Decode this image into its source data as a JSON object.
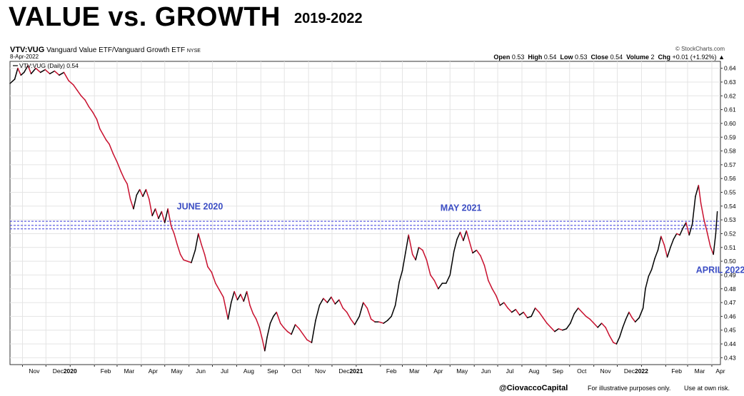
{
  "header": {
    "title": "VALUE vs. GROWTH",
    "years": "2019-2022"
  },
  "chart_info": {
    "symbol": "VTV:VUG",
    "name": "Vanguard Value ETF/Vanguard Growth ETF",
    "exchange": "NYSE",
    "date": "8-Apr-2022",
    "source": "© StockCharts.com",
    "legend": "VTV:VUG (Daily) 0.54",
    "ohlc": [
      {
        "label": "Open",
        "value": "0.53"
      },
      {
        "label": "High",
        "value": "0.54"
      },
      {
        "label": "Low",
        "value": "0.53"
      },
      {
        "label": "Close",
        "value": "0.54"
      },
      {
        "label": "Volume",
        "value": "2"
      },
      {
        "label": "Chg",
        "value": "+0.01 (+1.92%)"
      }
    ]
  },
  "chart_data": {
    "type": "line",
    "x_range": [
      "2019-10-16",
      "2022-04-12"
    ],
    "ylim": [
      0.425,
      0.645
    ],
    "y_ticks": [
      0.43,
      0.44,
      0.45,
      0.46,
      0.47,
      0.48,
      0.49,
      0.5,
      0.51,
      0.52,
      0.53,
      0.54,
      0.55,
      0.56,
      0.57,
      0.58,
      0.59,
      0.6,
      0.61,
      0.62,
      0.63,
      0.64
    ],
    "x_ticks": [
      {
        "label": "Nov",
        "date": "2019-11-01",
        "bold": false
      },
      {
        "label": "Dec",
        "date": "2019-12-01",
        "bold": false
      },
      {
        "label": "2020",
        "date": "2020-01-01",
        "bold": true
      },
      {
        "label": "Feb",
        "date": "2020-02-01",
        "bold": false
      },
      {
        "label": "Mar",
        "date": "2020-03-01",
        "bold": false
      },
      {
        "label": "Apr",
        "date": "2020-04-01",
        "bold": false
      },
      {
        "label": "May",
        "date": "2020-05-01",
        "bold": false
      },
      {
        "label": "Jun",
        "date": "2020-06-01",
        "bold": false
      },
      {
        "label": "Jul",
        "date": "2020-07-01",
        "bold": false
      },
      {
        "label": "Aug",
        "date": "2020-08-01",
        "bold": false
      },
      {
        "label": "Sep",
        "date": "2020-09-01",
        "bold": false
      },
      {
        "label": "Oct",
        "date": "2020-10-01",
        "bold": false
      },
      {
        "label": "Nov",
        "date": "2020-11-01",
        "bold": false
      },
      {
        "label": "Dec",
        "date": "2020-12-01",
        "bold": false
      },
      {
        "label": "2021",
        "date": "2021-01-01",
        "bold": true
      },
      {
        "label": "Feb",
        "date": "2021-02-01",
        "bold": false
      },
      {
        "label": "Mar",
        "date": "2021-03-01",
        "bold": false
      },
      {
        "label": "Apr",
        "date": "2021-04-01",
        "bold": false
      },
      {
        "label": "May",
        "date": "2021-05-01",
        "bold": false
      },
      {
        "label": "Jun",
        "date": "2021-06-01",
        "bold": false
      },
      {
        "label": "Jul",
        "date": "2021-07-01",
        "bold": false
      },
      {
        "label": "Aug",
        "date": "2021-08-01",
        "bold": false
      },
      {
        "label": "Sep",
        "date": "2021-09-01",
        "bold": false
      },
      {
        "label": "Oct",
        "date": "2021-10-01",
        "bold": false
      },
      {
        "label": "Nov",
        "date": "2021-11-01",
        "bold": false
      },
      {
        "label": "Dec",
        "date": "2021-12-01",
        "bold": false
      },
      {
        "label": "2022",
        "date": "2022-01-01",
        "bold": true
      },
      {
        "label": "Feb",
        "date": "2022-02-01",
        "bold": false
      },
      {
        "label": "Mar",
        "date": "2022-03-01",
        "bold": false
      },
      {
        "label": "Apr",
        "date": "2022-04-01",
        "bold": false
      }
    ],
    "series": [
      {
        "up_color": "#000000",
        "down_color": "#c8102e",
        "points": [
          [
            "2019-10-16",
            0.629
          ],
          [
            "2019-10-22",
            0.632
          ],
          [
            "2019-10-26",
            0.64
          ],
          [
            "2019-10-30",
            0.635
          ],
          [
            "2019-11-03",
            0.637
          ],
          [
            "2019-11-08",
            0.642
          ],
          [
            "2019-11-12",
            0.636
          ],
          [
            "2019-11-18",
            0.64
          ],
          [
            "2019-11-24",
            0.637
          ],
          [
            "2019-11-30",
            0.639
          ],
          [
            "2019-12-06",
            0.636
          ],
          [
            "2019-12-12",
            0.638
          ],
          [
            "2019-12-18",
            0.635
          ],
          [
            "2019-12-24",
            0.637
          ],
          [
            "2019-12-30",
            0.631
          ],
          [
            "2020-01-05",
            0.628
          ],
          [
            "2020-01-10",
            0.624
          ],
          [
            "2020-01-15",
            0.62
          ],
          [
            "2020-01-20",
            0.617
          ],
          [
            "2020-01-25",
            0.612
          ],
          [
            "2020-01-30",
            0.608
          ],
          [
            "2020-02-04",
            0.603
          ],
          [
            "2020-02-08",
            0.596
          ],
          [
            "2020-02-12",
            0.592
          ],
          [
            "2020-02-16",
            0.588
          ],
          [
            "2020-02-20",
            0.585
          ],
          [
            "2020-02-25",
            0.578
          ],
          [
            "2020-03-01",
            0.572
          ],
          [
            "2020-03-06",
            0.565
          ],
          [
            "2020-03-10",
            0.56
          ],
          [
            "2020-03-14",
            0.556
          ],
          [
            "2020-03-18",
            0.545
          ],
          [
            "2020-03-22",
            0.538
          ],
          [
            "2020-03-26",
            0.548
          ],
          [
            "2020-03-30",
            0.552
          ],
          [
            "2020-04-03",
            0.547
          ],
          [
            "2020-04-07",
            0.552
          ],
          [
            "2020-04-11",
            0.545
          ],
          [
            "2020-04-15",
            0.533
          ],
          [
            "2020-04-19",
            0.538
          ],
          [
            "2020-04-23",
            0.531
          ],
          [
            "2020-04-27",
            0.536
          ],
          [
            "2020-05-01",
            0.528
          ],
          [
            "2020-05-05",
            0.538
          ],
          [
            "2020-05-09",
            0.526
          ],
          [
            "2020-05-13",
            0.52
          ],
          [
            "2020-05-17",
            0.512
          ],
          [
            "2020-05-21",
            0.505
          ],
          [
            "2020-05-25",
            0.501
          ],
          [
            "2020-05-30",
            0.5
          ],
          [
            "2020-06-04",
            0.499
          ],
          [
            "2020-06-09",
            0.508
          ],
          [
            "2020-06-13",
            0.52
          ],
          [
            "2020-06-17",
            0.512
          ],
          [
            "2020-06-21",
            0.505
          ],
          [
            "2020-06-25",
            0.496
          ],
          [
            "2020-06-30",
            0.492
          ],
          [
            "2020-07-05",
            0.484
          ],
          [
            "2020-07-10",
            0.479
          ],
          [
            "2020-07-15",
            0.474
          ],
          [
            "2020-07-18",
            0.466
          ],
          [
            "2020-07-21",
            0.458
          ],
          [
            "2020-07-25",
            0.47
          ],
          [
            "2020-07-29",
            0.478
          ],
          [
            "2020-08-02",
            0.472
          ],
          [
            "2020-08-06",
            0.476
          ],
          [
            "2020-08-10",
            0.471
          ],
          [
            "2020-08-14",
            0.478
          ],
          [
            "2020-08-18",
            0.468
          ],
          [
            "2020-08-22",
            0.462
          ],
          [
            "2020-08-26",
            0.458
          ],
          [
            "2020-08-30",
            0.452
          ],
          [
            "2020-09-03",
            0.443
          ],
          [
            "2020-09-06",
            0.435
          ],
          [
            "2020-09-09",
            0.445
          ],
          [
            "2020-09-13",
            0.455
          ],
          [
            "2020-09-17",
            0.46
          ],
          [
            "2020-09-21",
            0.463
          ],
          [
            "2020-09-26",
            0.455
          ],
          [
            "2020-09-30",
            0.452
          ],
          [
            "2020-10-05",
            0.449
          ],
          [
            "2020-10-10",
            0.447
          ],
          [
            "2020-10-15",
            0.454
          ],
          [
            "2020-10-20",
            0.451
          ],
          [
            "2020-10-25",
            0.447
          ],
          [
            "2020-10-30",
            0.443
          ],
          [
            "2020-11-05",
            0.441
          ],
          [
            "2020-11-10",
            0.457
          ],
          [
            "2020-11-15",
            0.468
          ],
          [
            "2020-11-20",
            0.473
          ],
          [
            "2020-11-25",
            0.47
          ],
          [
            "2020-11-30",
            0.474
          ],
          [
            "2020-12-05",
            0.469
          ],
          [
            "2020-12-10",
            0.472
          ],
          [
            "2020-12-15",
            0.466
          ],
          [
            "2020-12-20",
            0.463
          ],
          [
            "2020-12-25",
            0.458
          ],
          [
            "2020-12-30",
            0.454
          ],
          [
            "2021-01-05",
            0.46
          ],
          [
            "2021-01-10",
            0.47
          ],
          [
            "2021-01-15",
            0.466
          ],
          [
            "2021-01-20",
            0.458
          ],
          [
            "2021-01-25",
            0.456
          ],
          [
            "2021-01-30",
            0.456
          ],
          [
            "2021-02-05",
            0.455
          ],
          [
            "2021-02-10",
            0.457
          ],
          [
            "2021-02-15",
            0.46
          ],
          [
            "2021-02-20",
            0.468
          ],
          [
            "2021-02-25",
            0.485
          ],
          [
            "2021-03-01",
            0.493
          ],
          [
            "2021-03-05",
            0.506
          ],
          [
            "2021-03-09",
            0.519
          ],
          [
            "2021-03-14",
            0.505
          ],
          [
            "2021-03-18",
            0.501
          ],
          [
            "2021-03-22",
            0.51
          ],
          [
            "2021-03-27",
            0.508
          ],
          [
            "2021-04-01",
            0.501
          ],
          [
            "2021-04-06",
            0.49
          ],
          [
            "2021-04-11",
            0.486
          ],
          [
            "2021-04-16",
            0.48
          ],
          [
            "2021-04-21",
            0.484
          ],
          [
            "2021-04-26",
            0.484
          ],
          [
            "2021-05-01",
            0.49
          ],
          [
            "2021-05-06",
            0.507
          ],
          [
            "2021-05-10",
            0.516
          ],
          [
            "2021-05-14",
            0.521
          ],
          [
            "2021-05-18",
            0.515
          ],
          [
            "2021-05-22",
            0.522
          ],
          [
            "2021-05-26",
            0.514
          ],
          [
            "2021-05-30",
            0.506
          ],
          [
            "2021-06-04",
            0.508
          ],
          [
            "2021-06-09",
            0.504
          ],
          [
            "2021-06-14",
            0.497
          ],
          [
            "2021-06-19",
            0.486
          ],
          [
            "2021-06-24",
            0.48
          ],
          [
            "2021-06-29",
            0.475
          ],
          [
            "2021-07-04",
            0.468
          ],
          [
            "2021-07-09",
            0.47
          ],
          [
            "2021-07-14",
            0.466
          ],
          [
            "2021-07-19",
            0.463
          ],
          [
            "2021-07-24",
            0.465
          ],
          [
            "2021-07-29",
            0.461
          ],
          [
            "2021-08-03",
            0.463
          ],
          [
            "2021-08-08",
            0.459
          ],
          [
            "2021-08-13",
            0.46
          ],
          [
            "2021-08-18",
            0.466
          ],
          [
            "2021-08-23",
            0.463
          ],
          [
            "2021-08-28",
            0.459
          ],
          [
            "2021-09-02",
            0.455
          ],
          [
            "2021-09-07",
            0.452
          ],
          [
            "2021-09-12",
            0.449
          ],
          [
            "2021-09-17",
            0.451
          ],
          [
            "2021-09-22",
            0.45
          ],
          [
            "2021-09-27",
            0.451
          ],
          [
            "2021-10-02",
            0.455
          ],
          [
            "2021-10-07",
            0.462
          ],
          [
            "2021-10-12",
            0.466
          ],
          [
            "2021-10-17",
            0.463
          ],
          [
            "2021-10-22",
            0.46
          ],
          [
            "2021-10-27",
            0.458
          ],
          [
            "2021-11-01",
            0.455
          ],
          [
            "2021-11-06",
            0.452
          ],
          [
            "2021-11-11",
            0.455
          ],
          [
            "2021-11-16",
            0.452
          ],
          [
            "2021-11-21",
            0.446
          ],
          [
            "2021-11-26",
            0.441
          ],
          [
            "2021-11-30",
            0.44
          ],
          [
            "2021-12-04",
            0.445
          ],
          [
            "2021-12-08",
            0.452
          ],
          [
            "2021-12-12",
            0.458
          ],
          [
            "2021-12-16",
            0.463
          ],
          [
            "2021-12-20",
            0.459
          ],
          [
            "2021-12-24",
            0.456
          ],
          [
            "2021-12-29",
            0.459
          ],
          [
            "2022-01-03",
            0.466
          ],
          [
            "2022-01-06",
            0.48
          ],
          [
            "2022-01-10",
            0.489
          ],
          [
            "2022-01-14",
            0.494
          ],
          [
            "2022-01-18",
            0.502
          ],
          [
            "2022-01-22",
            0.508
          ],
          [
            "2022-01-26",
            0.518
          ],
          [
            "2022-01-30",
            0.512
          ],
          [
            "2022-02-03",
            0.503
          ],
          [
            "2022-02-07",
            0.51
          ],
          [
            "2022-02-11",
            0.516
          ],
          [
            "2022-02-15",
            0.52
          ],
          [
            "2022-02-19",
            0.519
          ],
          [
            "2022-02-23",
            0.524
          ],
          [
            "2022-02-27",
            0.528
          ],
          [
            "2022-03-03",
            0.519
          ],
          [
            "2022-03-07",
            0.527
          ],
          [
            "2022-03-11",
            0.547
          ],
          [
            "2022-03-15",
            0.555
          ],
          [
            "2022-03-18",
            0.542
          ],
          [
            "2022-03-22",
            0.53
          ],
          [
            "2022-03-26",
            0.521
          ],
          [
            "2022-03-30",
            0.511
          ],
          [
            "2022-04-03",
            0.505
          ],
          [
            "2022-04-06",
            0.52
          ],
          [
            "2022-04-08",
            0.536
          ]
        ]
      }
    ],
    "reference_lines": [
      0.529,
      0.526,
      0.5235
    ],
    "annotations": [
      {
        "text": "JUNE 2020",
        "date": "2020-06-15",
        "y": 0.5375
      },
      {
        "text": "MAY 2021",
        "date": "2021-05-15",
        "y": 0.5365
      },
      {
        "text": "APRIL 2022",
        "date": "2022-04-12",
        "y": 0.4915
      }
    ],
    "grid": true
  },
  "footer": {
    "handle": "@CiovaccoCapital",
    "disclaimer1": "For illustrative purposes only.",
    "disclaimer2": "Use at own risk."
  }
}
